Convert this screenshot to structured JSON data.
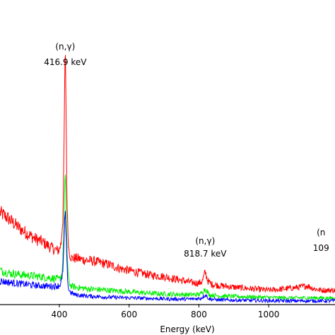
{
  "chart_data": {
    "type": "line",
    "title": "",
    "xlabel": "Energy (keV)",
    "ylabel": "",
    "xlim": [
      230,
      1190
    ],
    "ylim": [
      0,
      1
    ],
    "x_ticks": [
      400,
      600,
      800,
      1000
    ],
    "grid": false,
    "legend": "none",
    "series": [
      {
        "color": "#ff0000",
        "x": [
          230,
          250,
          270,
          290,
          310,
          330,
          350,
          370,
          385,
          395,
          400,
          405,
          410,
          413,
          415,
          417,
          419,
          421,
          424,
          428,
          435,
          450,
          470,
          500,
          540,
          580,
          620,
          660,
          700,
          740,
          780,
          800,
          810,
          818,
          826,
          835,
          860,
          900,
          950,
          1000,
          1050,
          1090,
          1110,
          1130,
          1150,
          1190
        ],
        "y": [
          0.3,
          0.285,
          0.265,
          0.245,
          0.23,
          0.215,
          0.205,
          0.19,
          0.18,
          0.175,
          0.18,
          0.2,
          0.28,
          0.45,
          0.69,
          0.83,
          0.69,
          0.42,
          0.25,
          0.17,
          0.15,
          0.15,
          0.145,
          0.14,
          0.13,
          0.115,
          0.105,
          0.095,
          0.09,
          0.08,
          0.07,
          0.068,
          0.075,
          0.105,
          0.075,
          0.065,
          0.06,
          0.055,
          0.05,
          0.045,
          0.05,
          0.055,
          0.06,
          0.05,
          0.045,
          0.045
        ]
      },
      {
        "color": "#00ee00",
        "x": [
          230,
          260,
          300,
          340,
          380,
          400,
          408,
          412,
          415,
          417,
          419,
          422,
          426,
          432,
          445,
          480,
          540,
          600,
          660,
          720,
          780,
          805,
          818,
          830,
          860,
          920,
          980,
          1040,
          1100,
          1150,
          1190
        ],
        "y": [
          0.11,
          0.1,
          0.095,
          0.09,
          0.085,
          0.08,
          0.1,
          0.2,
          0.36,
          0.42,
          0.34,
          0.18,
          0.08,
          0.06,
          0.055,
          0.05,
          0.045,
          0.04,
          0.035,
          0.032,
          0.03,
          0.032,
          0.05,
          0.03,
          0.026,
          0.024,
          0.022,
          0.02,
          0.02,
          0.02,
          0.018
        ]
      },
      {
        "color": "#0000ff",
        "x": [
          230,
          260,
          300,
          340,
          380,
          400,
          408,
          412,
          415,
          417,
          419,
          422,
          426,
          432,
          445,
          480,
          540,
          600,
          660,
          720,
          780,
          805,
          818,
          830,
          860,
          920,
          980,
          1040,
          1100,
          1150,
          1190
        ],
        "y": [
          0.075,
          0.07,
          0.065,
          0.06,
          0.058,
          0.06,
          0.08,
          0.15,
          0.26,
          0.3,
          0.24,
          0.12,
          0.05,
          0.038,
          0.03,
          0.026,
          0.022,
          0.02,
          0.018,
          0.016,
          0.016,
          0.018,
          0.03,
          0.016,
          0.013,
          0.012,
          0.011,
          0.01,
          0.01,
          0.01,
          0.01
        ]
      }
    ],
    "annotations": [
      {
        "line1": "(n,γ)",
        "line2": "416.9 keV",
        "x": 417
      },
      {
        "line1": "(n,γ)",
        "line2": "818.7 keV",
        "x": 818
      },
      {
        "line1": "(n",
        "line2": "109",
        "x": 1150
      }
    ]
  }
}
